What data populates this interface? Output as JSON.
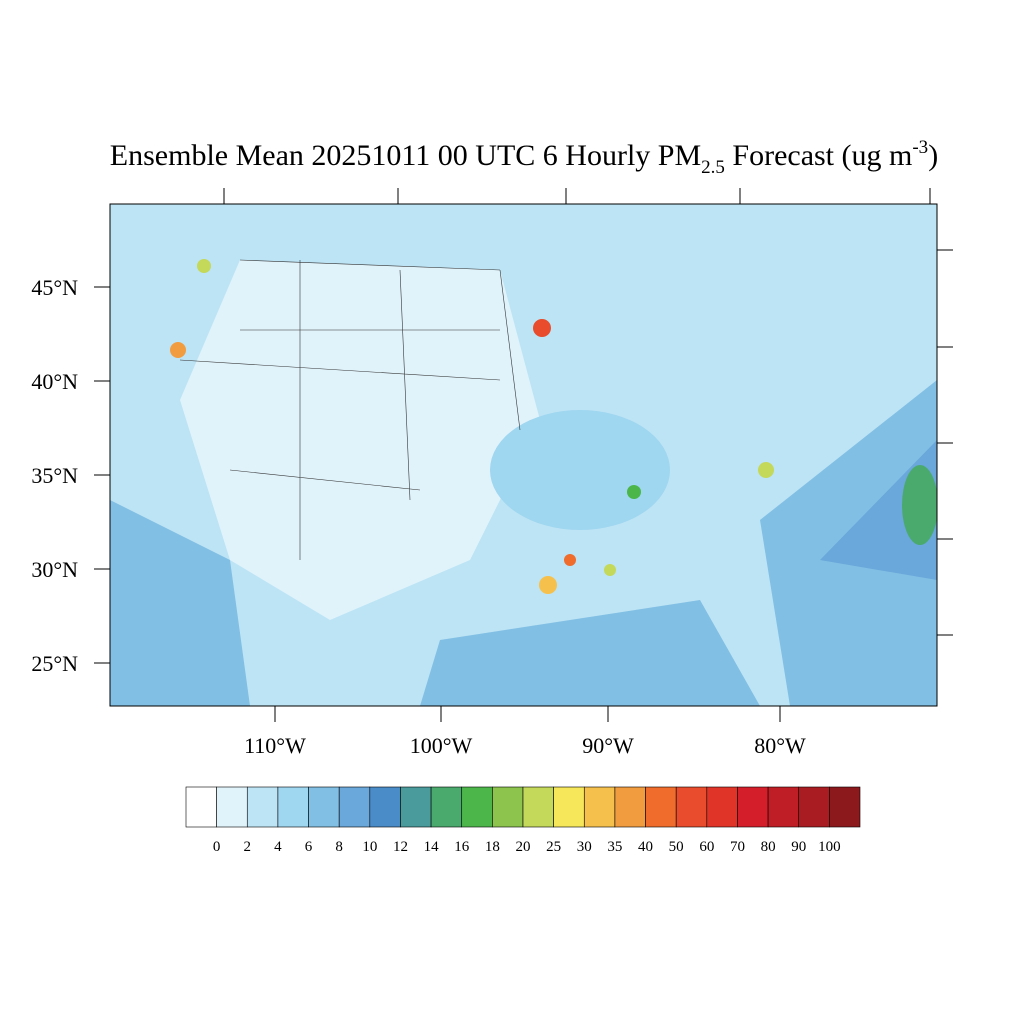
{
  "title": {
    "text": "Ensemble Mean 20251011 00 UTC 6 Hourly PM",
    "subscript": "2.5",
    "middle": " Forecast (ug m",
    "superscript": "-3",
    "end": ")"
  },
  "lat_labels": [
    "45°N",
    "40°N",
    "35°N",
    "30°N",
    "25°N"
  ],
  "lon_labels": [
    "110°W",
    "100°W",
    "90°W",
    "80°W"
  ],
  "colorbar": {
    "colors": [
      "#ffffff",
      "#e0f3fb",
      "#bde4f5",
      "#9fd6f0",
      "#82bfe4",
      "#6aa7da",
      "#4a8cc8",
      "#4a9c9c",
      "#4aaa6e",
      "#4cb64a",
      "#8cc44e",
      "#c4d85a",
      "#f6e65a",
      "#f6c04c",
      "#f29c40",
      "#f06c2c",
      "#e84c2c",
      "#e03428",
      "#d41e2a",
      "#c01e26",
      "#a81c22",
      "#8c1a1c"
    ],
    "labels": [
      0,
      2,
      4,
      6,
      8,
      10,
      12,
      14,
      16,
      18,
      20,
      25,
      30,
      35,
      40,
      50,
      60,
      70,
      80,
      90,
      100
    ]
  }
}
